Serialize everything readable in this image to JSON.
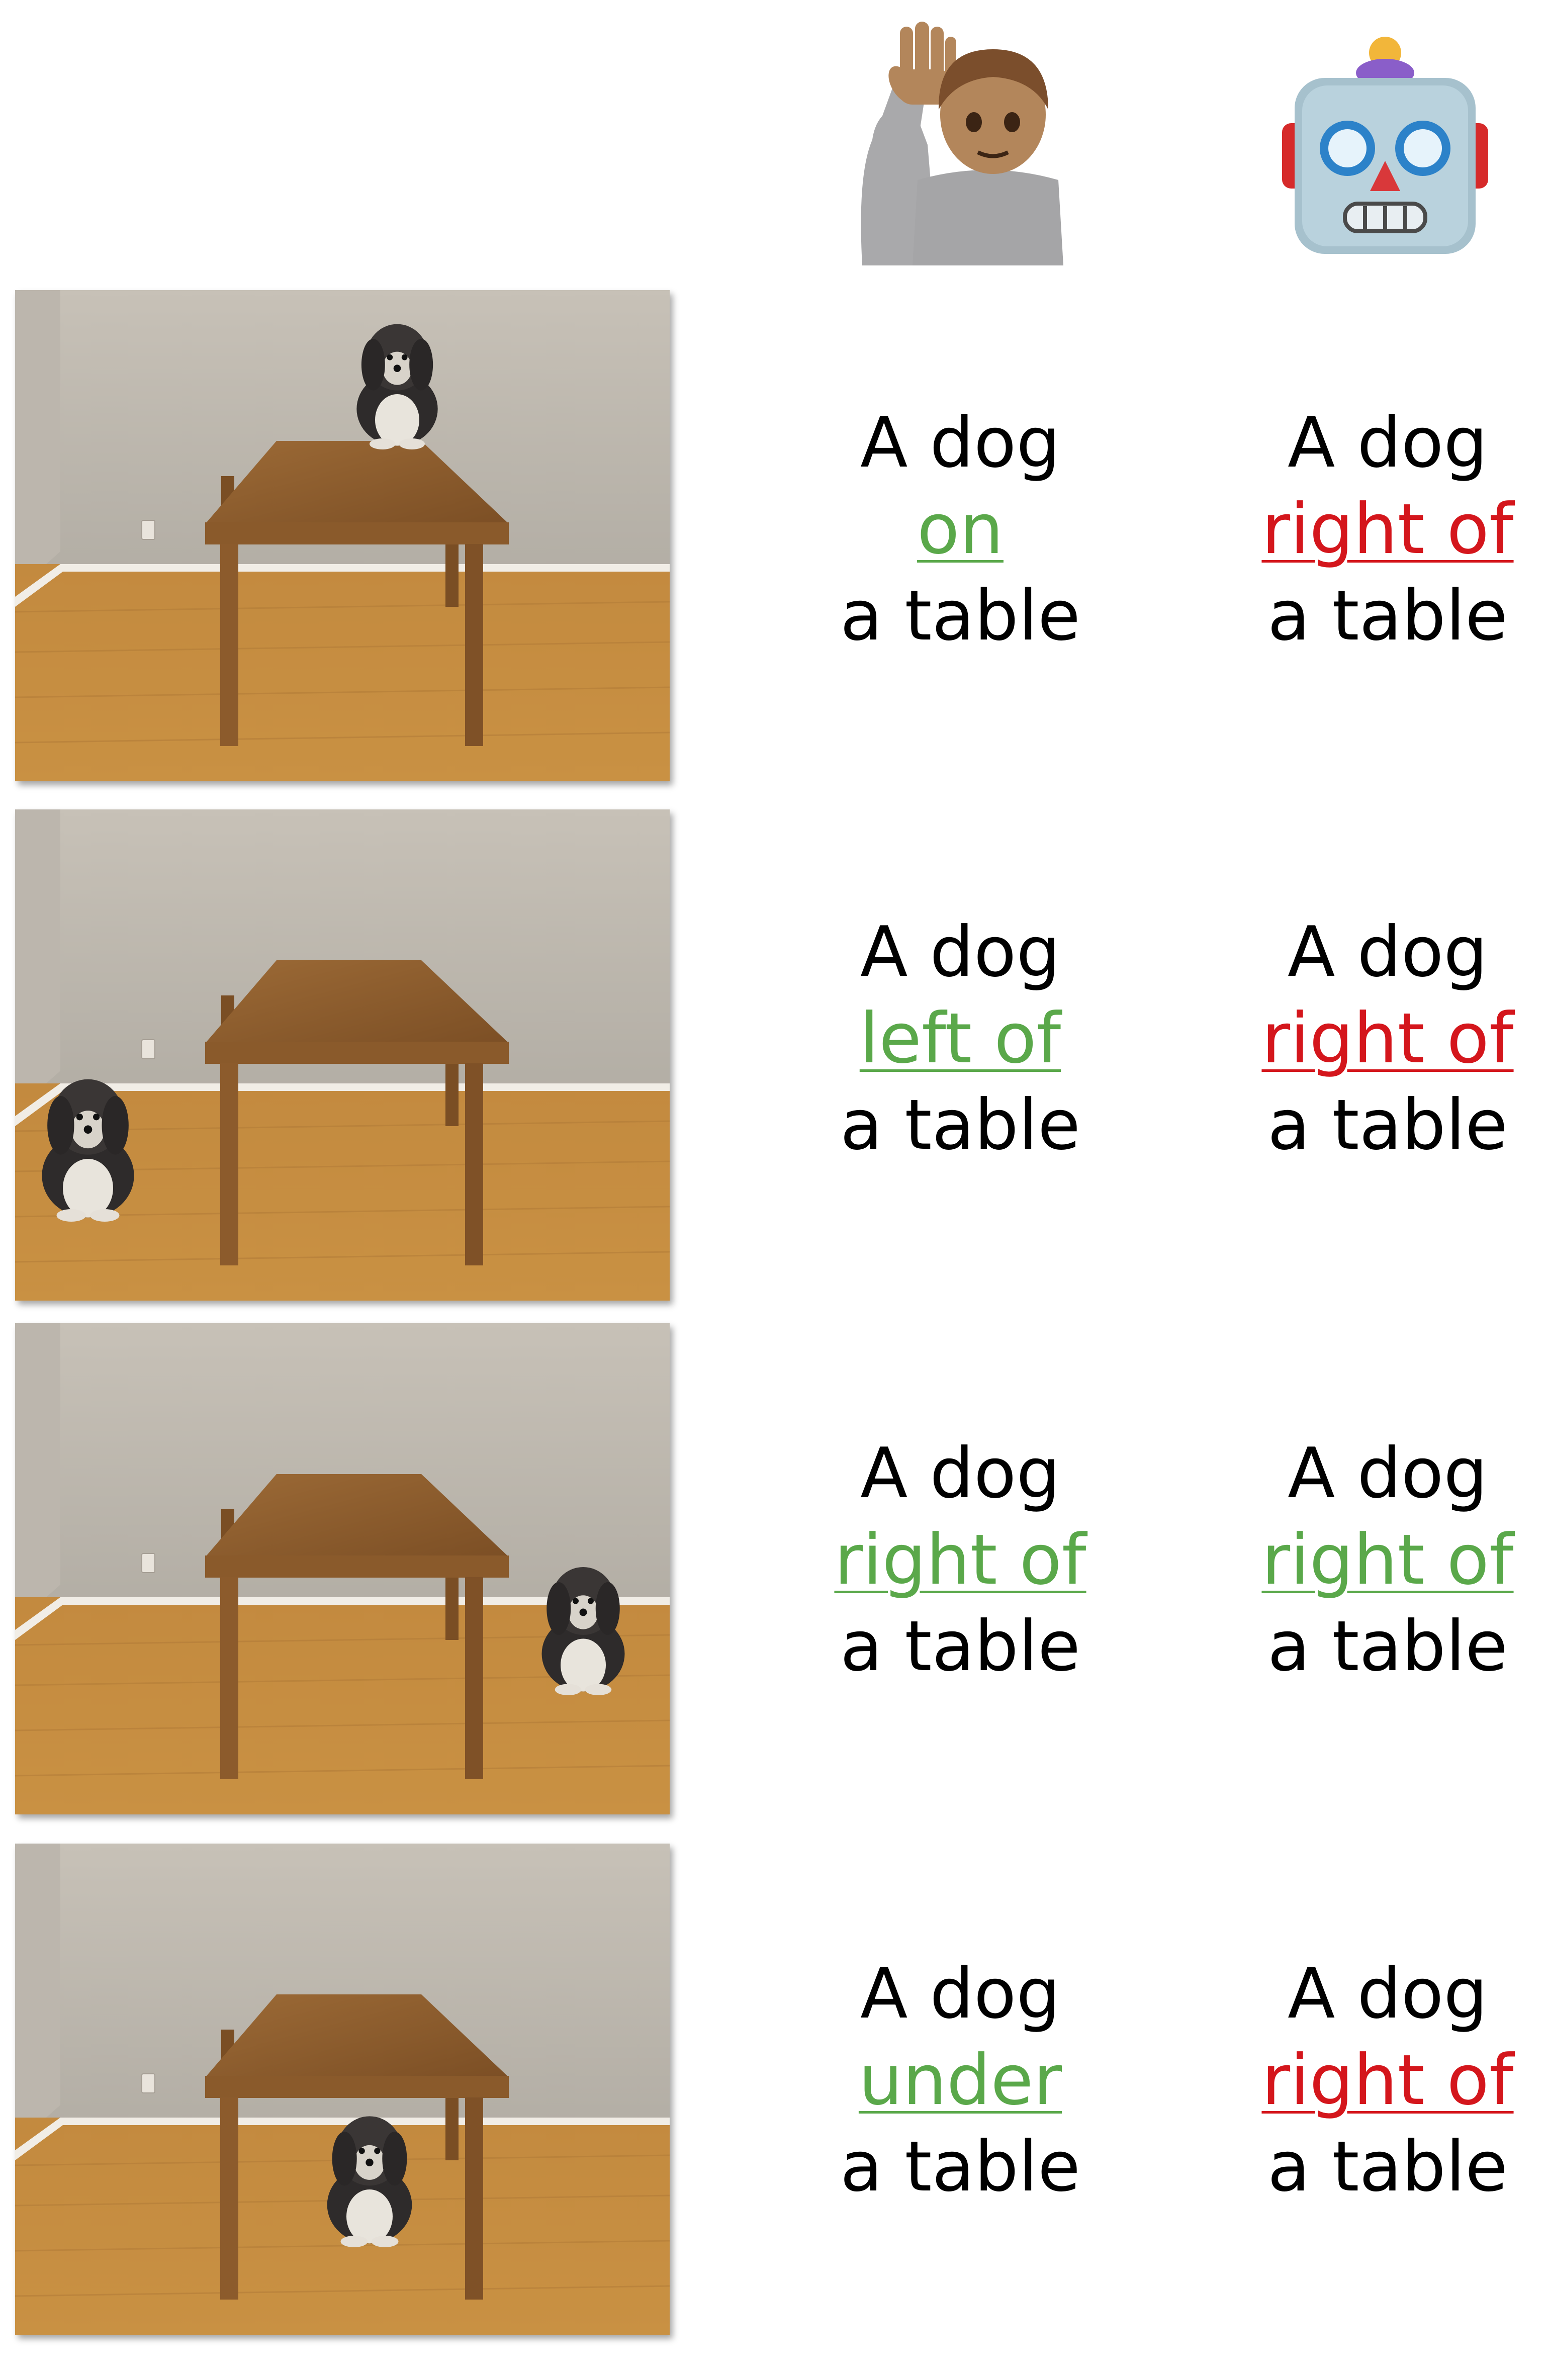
{
  "header": {
    "human": {
      "icon": "person-raising-hand-icon"
    },
    "model": {
      "icon": "robot-face-icon"
    }
  },
  "colors": {
    "correct": "#5aa84a",
    "wrong": "#d4161c",
    "text": "#000000"
  },
  "rows": [
    {
      "image": {
        "icon": "dog-on-table-photo"
      },
      "human": {
        "subject": "A dog",
        "relation": "on",
        "object": "a table",
        "status": "correct"
      },
      "model": {
        "subject": "A dog",
        "relation": "right of",
        "object": "a table",
        "status": "wrong"
      }
    },
    {
      "image": {
        "icon": "dog-left-of-table-photo"
      },
      "human": {
        "subject": "A dog",
        "relation": "left of",
        "object": "a table",
        "status": "correct"
      },
      "model": {
        "subject": "A dog",
        "relation": "right of",
        "object": "a table",
        "status": "wrong"
      }
    },
    {
      "image": {
        "icon": "dog-right-of-table-photo"
      },
      "human": {
        "subject": "A dog",
        "relation": "right of",
        "object": "a table",
        "status": "correct"
      },
      "model": {
        "subject": "A dog",
        "relation": "right of",
        "object": "a table",
        "status": "correct"
      }
    },
    {
      "image": {
        "icon": "dog-under-table-photo"
      },
      "human": {
        "subject": "A dog",
        "relation": "under",
        "object": "a table",
        "status": "correct"
      },
      "model": {
        "subject": "A dog",
        "relation": "right of",
        "object": "a table",
        "status": "wrong"
      }
    }
  ]
}
